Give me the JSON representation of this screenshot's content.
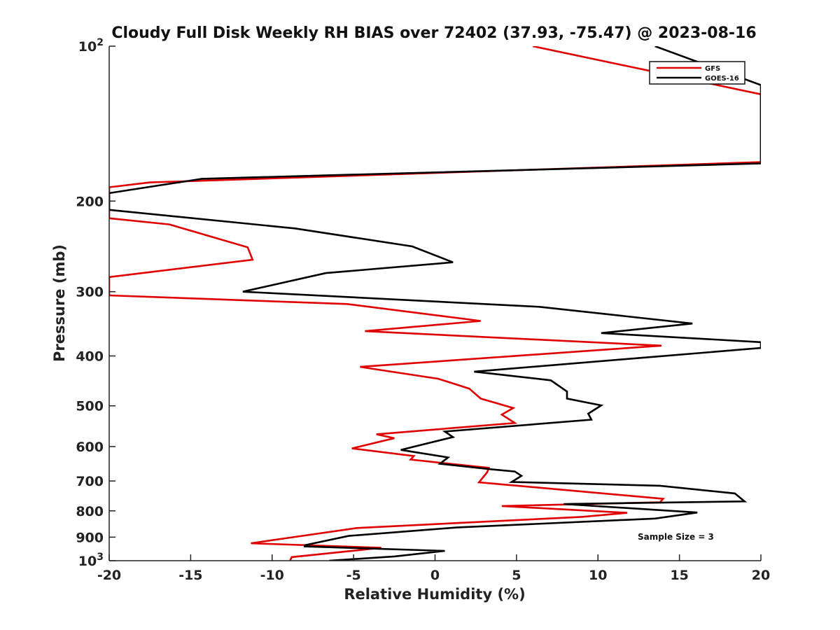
{
  "chart_data": {
    "type": "line",
    "title": "Cloudy Full Disk Weekly RH BIAS over 72402 (37.93, -75.47) @ 2023-08-16",
    "xlabel": "Relative Humidity (%)",
    "ylabel": "Pressure (mb)",
    "xlim": [
      -20,
      20
    ],
    "ylim": [
      100,
      1000
    ],
    "y_scale": "log",
    "y_reversed": true,
    "x_ticks": [
      "-20",
      "-15",
      "-10",
      "-5",
      "0",
      "5",
      "10",
      "15",
      "20"
    ],
    "x_tick_values": [
      -20,
      -15,
      -10,
      -5,
      0,
      5,
      10,
      15,
      20
    ],
    "y_ticks": [
      {
        "value": 100,
        "base": "10",
        "exp": "2"
      },
      {
        "value": 200,
        "label": "200"
      },
      {
        "value": 300,
        "label": "300"
      },
      {
        "value": 400,
        "label": "400"
      },
      {
        "value": 500,
        "label": "500"
      },
      {
        "value": 600,
        "label": "600"
      },
      {
        "value": 700,
        "label": "700"
      },
      {
        "value": 800,
        "label": "800"
      },
      {
        "value": 900,
        "label": "900"
      },
      {
        "value": 1000,
        "base": "10",
        "exp": "3"
      }
    ],
    "grid": false,
    "legend_position": "top-right",
    "annotation": "Sample Size = 3",
    "series": [
      {
        "name": "GFS",
        "color": "#e00000",
        "points": [
          [
            6.0,
            100
          ],
          [
            20.0,
            124
          ],
          [
            20.0,
            168
          ],
          [
            -17.5,
            184
          ],
          [
            -20.0,
            188
          ],
          [
            -20.0,
            216
          ],
          [
            -16.3,
            222
          ],
          [
            -11.5,
            246
          ],
          [
            -11.2,
            260
          ],
          [
            -20.0,
            281
          ],
          [
            -20.0,
            305
          ],
          [
            -5.4,
            317
          ],
          [
            2.8,
            342
          ],
          [
            -4.3,
            358
          ],
          [
            13.9,
            382
          ],
          [
            -4.6,
            420
          ],
          [
            0.2,
            443
          ],
          [
            2.1,
            463
          ],
          [
            2.8,
            484
          ],
          [
            4.8,
            505
          ],
          [
            4.1,
            520
          ],
          [
            4.9,
            540
          ],
          [
            -3.6,
            568
          ],
          [
            -2.5,
            578
          ],
          [
            -5.1,
            605
          ],
          [
            -1.3,
            626
          ],
          [
            -1.5,
            636
          ],
          [
            3.3,
            660
          ],
          [
            3.2,
            673
          ],
          [
            2.7,
            704
          ],
          [
            14.0,
            758
          ],
          [
            13.8,
            770
          ],
          [
            4.1,
            783
          ],
          [
            11.8,
            807
          ],
          [
            9.0,
            822
          ],
          [
            -4.8,
            864
          ],
          [
            -8.7,
            900
          ],
          [
            -11.3,
            925
          ],
          [
            -3.3,
            944
          ],
          [
            -8.8,
            984
          ],
          [
            -8.9,
            1000
          ]
        ]
      },
      {
        "name": "GOES-16",
        "color": "#000000",
        "points": [
          [
            13.5,
            100
          ],
          [
            20.0,
            119
          ],
          [
            20.0,
            169
          ],
          [
            -14.3,
            181
          ],
          [
            -20.0,
            193
          ],
          [
            -20.0,
            208
          ],
          [
            -8.6,
            226
          ],
          [
            -1.4,
            245
          ],
          [
            1.1,
            263
          ],
          [
            -6.7,
            276
          ],
          [
            -11.8,
            300
          ],
          [
            6.4,
            321
          ],
          [
            15.8,
            346
          ],
          [
            10.2,
            361
          ],
          [
            20.0,
            376
          ],
          [
            20.0,
            386
          ],
          [
            2.4,
            429
          ],
          [
            7.1,
            446
          ],
          [
            8.1,
            469
          ],
          [
            8.1,
            484
          ],
          [
            10.2,
            499
          ],
          [
            9.4,
            518
          ],
          [
            9.6,
            532
          ],
          [
            0.6,
            561
          ],
          [
            1.1,
            575
          ],
          [
            -2.1,
            609
          ],
          [
            0.8,
            630
          ],
          [
            0.3,
            648
          ],
          [
            3.4,
            664
          ],
          [
            4.9,
            671
          ],
          [
            5.3,
            684
          ],
          [
            4.7,
            703
          ],
          [
            13.8,
            715
          ],
          [
            18.4,
            740
          ],
          [
            19.0,
            767
          ],
          [
            7.9,
            776
          ],
          [
            16.1,
            806
          ],
          [
            13.5,
            828
          ],
          [
            1.3,
            862
          ],
          [
            -5.3,
            895
          ],
          [
            -8.0,
            933
          ],
          [
            -8.0,
            938
          ],
          [
            0.6,
            957
          ],
          [
            -2.5,
            981
          ],
          [
            -6.5,
            1000
          ]
        ]
      }
    ]
  }
}
